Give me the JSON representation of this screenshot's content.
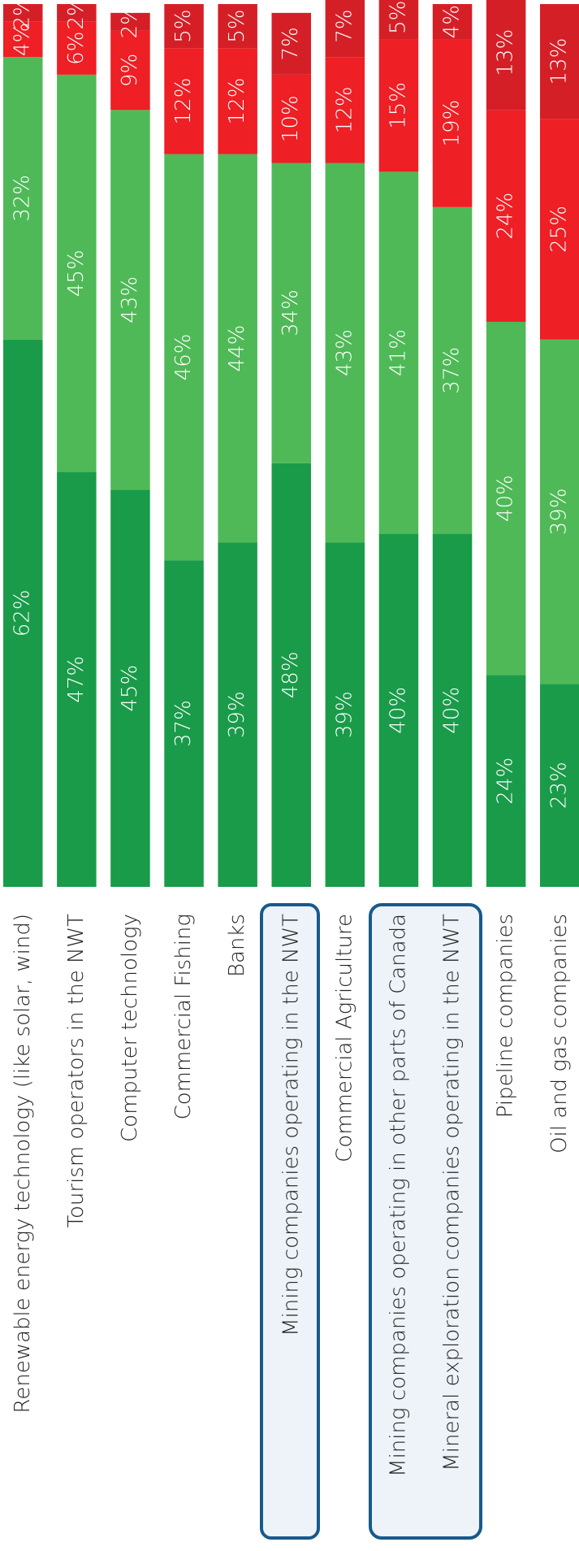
{
  "chart_data": {
    "type": "stacked-bar",
    "categories": [
      "Renewable energy technology (like solar, wind)",
      "Tourism operators in the NWT",
      "Computer technology",
      "Commercial Fishing",
      "Banks",
      "Mining companies operating in the NWT",
      "Commercial Agriculture",
      "Mining companies operating in other parts of Canada",
      "Mineral exploration companies operating in the NWT",
      "Pipeline companies",
      "Oil and gas companies"
    ],
    "series": [
      {
        "color": "#1a9b4a",
        "values": [
          62,
          47,
          45,
          37,
          39,
          48,
          39,
          40,
          40,
          24,
          23
        ],
        "value_labels": [
          "62%",
          "47%",
          "45%",
          "37%",
          "39%",
          "48%",
          "39%",
          "40%",
          "40%",
          "24%",
          "23%"
        ]
      },
      {
        "color": "#4fb957",
        "values": [
          32,
          45,
          43,
          46,
          44,
          34,
          43,
          41,
          37,
          40,
          39
        ],
        "value_labels": [
          "32%",
          "45%",
          "43%",
          "46%",
          "44%",
          "34%",
          "43%",
          "41%",
          "37%",
          "40%",
          "39%"
        ]
      },
      {
        "color": "#ee1f25",
        "values": [
          4,
          6,
          9,
          12,
          12,
          10,
          12,
          15,
          19,
          24,
          25
        ],
        "value_labels": [
          "4%",
          "6%",
          "9%",
          "12%",
          "12%",
          "10%",
          "12%",
          "15%",
          "19%",
          "24%",
          "25%"
        ]
      },
      {
        "color": "#d51f27",
        "values": [
          2,
          2,
          2,
          5,
          5,
          7,
          7,
          5,
          4,
          13,
          13
        ],
        "value_labels": [
          "2%",
          "2%",
          "2%",
          "5%",
          "5%",
          "7%",
          "7%",
          "5%",
          "4%",
          "13%",
          "13%"
        ]
      }
    ],
    "ylim": [
      0,
      100
    ]
  }
}
